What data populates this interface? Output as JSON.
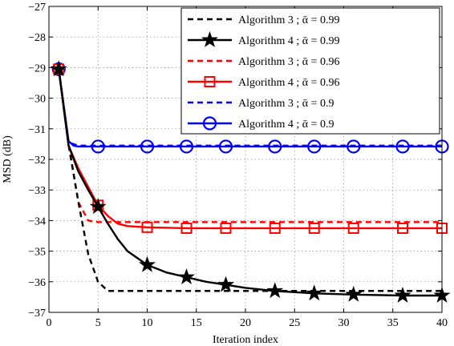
{
  "chart_data": {
    "type": "line",
    "xlabel": "Iteration index",
    "ylabel": "MSD (dB)",
    "xlim": [
      0,
      40
    ],
    "ylim": [
      -37,
      -27
    ],
    "xticks": [
      0,
      5,
      10,
      15,
      20,
      25,
      30,
      35,
      40
    ],
    "yticks": [
      -27,
      -28,
      -29,
      -30,
      -31,
      -32,
      -33,
      -34,
      -35,
      -36,
      -37
    ],
    "grid": true,
    "legend_position": "top-right",
    "series": [
      {
        "name": "Algorithm 3 ; ᾱ = 0.99",
        "color": "#000000",
        "line_style": "dashed",
        "marker": "none",
        "x": [
          1,
          2,
          3,
          4,
          5,
          6,
          7,
          8,
          10,
          20,
          30,
          40
        ],
        "y": [
          -29.05,
          -31.5,
          -33.4,
          -35.1,
          -36.0,
          -36.3,
          -36.3,
          -36.3,
          -36.3,
          -36.3,
          -36.3,
          -36.3
        ],
        "marker_x": [],
        "marker_y": []
      },
      {
        "name": "Algorithm 4 ; ᾱ = 0.99",
        "color": "#000000",
        "line_style": "solid",
        "marker": "star",
        "x": [
          1,
          2,
          3,
          4,
          5,
          6,
          7,
          8,
          10,
          12,
          14,
          16,
          18,
          20,
          23,
          27,
          31,
          36,
          40
        ],
        "y": [
          -29.05,
          -31.55,
          -32.4,
          -33.0,
          -33.55,
          -34.1,
          -34.6,
          -35.0,
          -35.45,
          -35.7,
          -35.85,
          -36.0,
          -36.1,
          -36.2,
          -36.3,
          -36.38,
          -36.42,
          -36.45,
          -36.45
        ],
        "marker_x": [
          1,
          5,
          10,
          14,
          18,
          23,
          27,
          31,
          36,
          40
        ],
        "marker_y": [
          -29.05,
          -33.55,
          -35.45,
          -35.85,
          -36.1,
          -36.3,
          -36.38,
          -36.42,
          -36.45,
          -36.45
        ]
      },
      {
        "name": "Algorithm 3 ; ᾱ = 0.96",
        "color": "#ff0000",
        "line_style": "dashed",
        "marker": "none",
        "x": [
          1,
          2,
          3,
          4,
          5,
          10,
          20,
          30,
          40
        ],
        "y": [
          -29.05,
          -31.55,
          -33.4,
          -34.0,
          -34.05,
          -34.05,
          -34.05,
          -34.05,
          -34.05
        ],
        "marker_x": [],
        "marker_y": []
      },
      {
        "name": "Algorithm 4 ; ᾱ = 0.96",
        "color": "#ff0000",
        "line_style": "solid",
        "marker": "square",
        "x": [
          1,
          2,
          3,
          4,
          5,
          6,
          7,
          8,
          10,
          14,
          20,
          40
        ],
        "y": [
          -29.05,
          -31.55,
          -32.3,
          -32.9,
          -33.5,
          -33.85,
          -34.1,
          -34.18,
          -34.22,
          -34.25,
          -34.25,
          -34.25
        ],
        "marker_x": [
          1,
          5,
          10,
          14,
          18,
          23,
          27,
          31,
          36,
          40
        ],
        "marker_y": [
          -29.05,
          -33.5,
          -34.22,
          -34.25,
          -34.25,
          -34.25,
          -34.25,
          -34.25,
          -34.25,
          -34.25
        ]
      },
      {
        "name": "Algorithm 3 ; ᾱ = 0.9",
        "color": "#0000ff",
        "line_style": "dashed",
        "marker": "none",
        "x": [
          1,
          2,
          3,
          4,
          5,
          10,
          20,
          30,
          40
        ],
        "y": [
          -29.05,
          -31.45,
          -31.55,
          -31.55,
          -31.55,
          -31.55,
          -31.55,
          -31.55,
          -31.55
        ],
        "marker_x": [],
        "marker_y": []
      },
      {
        "name": "Algorithm 4 ; ᾱ = 0.9",
        "color": "#0000ff",
        "line_style": "solid",
        "marker": "circle",
        "x": [
          1,
          2,
          2.5,
          3,
          4,
          5,
          10,
          20,
          30,
          40
        ],
        "y": [
          -29.05,
          -31.4,
          -31.55,
          -31.58,
          -31.58,
          -31.58,
          -31.58,
          -31.58,
          -31.58,
          -31.58
        ],
        "marker_x": [
          1,
          5,
          10,
          14,
          18,
          23,
          27,
          31,
          36,
          40
        ],
        "marker_y": [
          -29.05,
          -31.58,
          -31.58,
          -31.58,
          -31.58,
          -31.58,
          -31.58,
          -31.58,
          -31.58,
          -31.58
        ]
      }
    ]
  }
}
